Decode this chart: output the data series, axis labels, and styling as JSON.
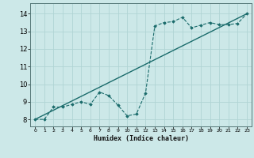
{
  "xlabel": "Humidex (Indice chaleur)",
  "ylabel": "",
  "bg_color": "#cce8e8",
  "grid_color": "#b0d4d4",
  "line_color": "#1a6b6b",
  "xlim": [
    -0.5,
    23.5
  ],
  "ylim": [
    7.6,
    14.6
  ],
  "xticks": [
    0,
    1,
    2,
    3,
    4,
    5,
    6,
    7,
    8,
    9,
    10,
    11,
    12,
    13,
    14,
    15,
    16,
    17,
    18,
    19,
    20,
    21,
    22,
    23
  ],
  "yticks": [
    8,
    9,
    10,
    11,
    12,
    13,
    14
  ],
  "curve_x": [
    0,
    1,
    2,
    3,
    4,
    5,
    6,
    7,
    8,
    9,
    10,
    11,
    12,
    13,
    14,
    15,
    16,
    17,
    18,
    19,
    20,
    21,
    22,
    23
  ],
  "curve_y": [
    8.0,
    8.0,
    8.7,
    8.7,
    8.85,
    9.0,
    8.85,
    9.55,
    9.35,
    8.8,
    8.2,
    8.3,
    9.5,
    13.3,
    13.5,
    13.55,
    13.8,
    13.2,
    13.35,
    13.5,
    13.38,
    13.38,
    13.45,
    14.0
  ],
  "trend_x": [
    0,
    23
  ],
  "trend_y": [
    8.0,
    14.0
  ]
}
